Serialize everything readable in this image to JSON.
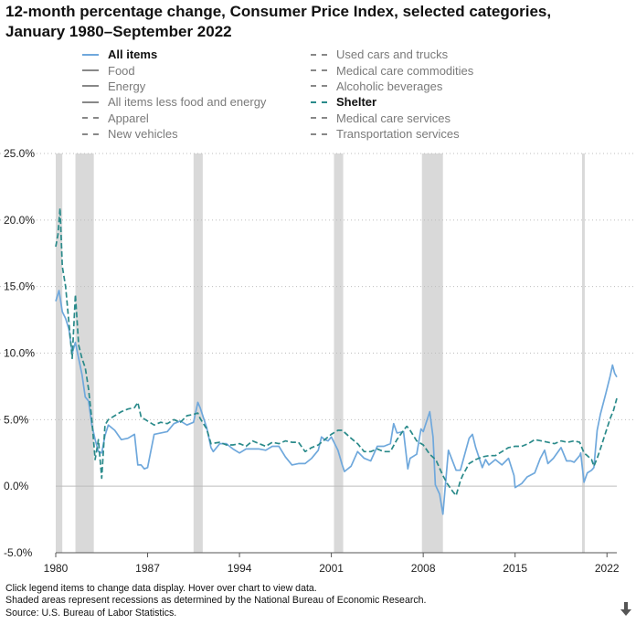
{
  "title_line1": "12-month percentage change, Consumer Price Index, selected categories,",
  "title_line2": "January 1980–September 2022",
  "legend": {
    "left": [
      {
        "label": "All items",
        "style": "solid",
        "color": "#6fa8dc",
        "active": true
      },
      {
        "label": "Food",
        "style": "solid",
        "color": "#888888",
        "active": false
      },
      {
        "label": "Energy",
        "style": "solid",
        "color": "#888888",
        "active": false
      },
      {
        "label": "All items less food and energy",
        "style": "solid",
        "color": "#888888",
        "active": false
      },
      {
        "label": "Apparel",
        "style": "dashed",
        "color": "#888888",
        "active": false
      },
      {
        "label": "New vehicles",
        "style": "dashed",
        "color": "#888888",
        "active": false
      }
    ],
    "right": [
      {
        "label": "Used cars and trucks",
        "style": "dashed",
        "color": "#888888",
        "active": false
      },
      {
        "label": "Medical care commodities",
        "style": "dashed",
        "color": "#888888",
        "active": false
      },
      {
        "label": "Alcoholic beverages",
        "style": "dashed",
        "color": "#888888",
        "active": false
      },
      {
        "label": "Shelter",
        "style": "dashed",
        "color": "#2a8a8a",
        "active": true
      },
      {
        "label": "Medical care services",
        "style": "dashed",
        "color": "#888888",
        "active": false
      },
      {
        "label": "Transportation services",
        "style": "dashed",
        "color": "#888888",
        "active": false
      }
    ]
  },
  "chart_data": {
    "type": "line",
    "title": "12-month percentage change, Consumer Price Index, selected categories, January 1980–September 2022",
    "xlim": [
      1980.0,
      2022.75
    ],
    "ylim": [
      -5,
      25
    ],
    "y_ticks": [
      -5,
      0,
      5,
      10,
      15,
      20,
      25
    ],
    "y_tick_labels": [
      "-5.0%",
      "0.0%",
      "5.0%",
      "10.0%",
      "15.0%",
      "20.0%",
      "25.0%"
    ],
    "x_ticks": [
      1980,
      1987,
      1994,
      2001,
      2008,
      2015,
      2022
    ],
    "x_tick_labels": [
      "1980",
      "1987",
      "1994",
      "2001",
      "2008",
      "2015",
      "2022"
    ],
    "grid": "horizontal dotted",
    "recessions": [
      [
        1980.0,
        1980.5
      ],
      [
        1981.5,
        1982.9
      ],
      [
        1990.5,
        1991.2
      ],
      [
        2001.2,
        2001.9
      ],
      [
        2007.9,
        2009.5
      ],
      [
        2020.1,
        2020.3
      ]
    ],
    "series": [
      {
        "name": "All items",
        "color": "#6fa8dc",
        "dash": false,
        "points": [
          [
            1980.0,
            13.9
          ],
          [
            1980.25,
            14.7
          ],
          [
            1980.5,
            13.1
          ],
          [
            1980.75,
            12.6
          ],
          [
            1981.0,
            11.8
          ],
          [
            1981.25,
            10.0
          ],
          [
            1981.5,
            10.8
          ],
          [
            1981.75,
            9.6
          ],
          [
            1982.0,
            8.4
          ],
          [
            1982.25,
            6.7
          ],
          [
            1982.5,
            6.4
          ],
          [
            1982.75,
            4.6
          ],
          [
            1983.0,
            3.5
          ],
          [
            1983.25,
            2.6
          ],
          [
            1983.5,
            2.5
          ],
          [
            1983.75,
            3.8
          ],
          [
            1984.0,
            4.6
          ],
          [
            1984.5,
            4.2
          ],
          [
            1985.0,
            3.5
          ],
          [
            1985.5,
            3.6
          ],
          [
            1986.0,
            3.9
          ],
          [
            1986.25,
            1.6
          ],
          [
            1986.5,
            1.6
          ],
          [
            1986.75,
            1.3
          ],
          [
            1987.0,
            1.4
          ],
          [
            1987.5,
            3.9
          ],
          [
            1988.0,
            4.0
          ],
          [
            1988.5,
            4.1
          ],
          [
            1989.0,
            4.7
          ],
          [
            1989.5,
            4.9
          ],
          [
            1990.0,
            4.6
          ],
          [
            1990.5,
            4.8
          ],
          [
            1990.83,
            6.3
          ],
          [
            1991.0,
            5.9
          ],
          [
            1991.5,
            4.4
          ],
          [
            1991.83,
            2.9
          ],
          [
            1992.0,
            2.6
          ],
          [
            1992.5,
            3.2
          ],
          [
            1993.0,
            3.2
          ],
          [
            1993.5,
            2.8
          ],
          [
            1994.0,
            2.5
          ],
          [
            1994.5,
            2.8
          ],
          [
            1995.0,
            2.8
          ],
          [
            1995.5,
            2.8
          ],
          [
            1996.0,
            2.7
          ],
          [
            1996.5,
            3.0
          ],
          [
            1997.0,
            3.0
          ],
          [
            1997.5,
            2.2
          ],
          [
            1998.0,
            1.6
          ],
          [
            1998.5,
            1.7
          ],
          [
            1999.0,
            1.7
          ],
          [
            1999.5,
            2.1
          ],
          [
            2000.0,
            2.7
          ],
          [
            2000.25,
            3.7
          ],
          [
            2000.5,
            3.5
          ],
          [
            2000.75,
            3.4
          ],
          [
            2001.0,
            3.7
          ],
          [
            2001.5,
            2.7
          ],
          [
            2001.83,
            1.6
          ],
          [
            2002.0,
            1.1
          ],
          [
            2002.5,
            1.5
          ],
          [
            2003.0,
            2.6
          ],
          [
            2003.5,
            2.1
          ],
          [
            2004.0,
            1.9
          ],
          [
            2004.5,
            3.0
          ],
          [
            2005.0,
            3.0
          ],
          [
            2005.5,
            3.2
          ],
          [
            2005.75,
            4.7
          ],
          [
            2006.0,
            4.0
          ],
          [
            2006.5,
            4.1
          ],
          [
            2006.83,
            1.3
          ],
          [
            2007.0,
            2.1
          ],
          [
            2007.5,
            2.4
          ],
          [
            2007.83,
            4.3
          ],
          [
            2008.0,
            4.1
          ],
          [
            2008.5,
            5.6
          ],
          [
            2008.75,
            3.7
          ],
          [
            2008.92,
            0.1
          ],
          [
            2009.25,
            -0.6
          ],
          [
            2009.5,
            -2.1
          ],
          [
            2009.92,
            2.7
          ],
          [
            2010.5,
            1.2
          ],
          [
            2010.83,
            1.2
          ],
          [
            2011.5,
            3.6
          ],
          [
            2011.75,
            3.9
          ],
          [
            2012.0,
            2.9
          ],
          [
            2012.5,
            1.4
          ],
          [
            2012.75,
            2.0
          ],
          [
            2013.0,
            1.6
          ],
          [
            2013.5,
            2.0
          ],
          [
            2014.0,
            1.6
          ],
          [
            2014.5,
            2.1
          ],
          [
            2014.92,
            0.8
          ],
          [
            2015.0,
            -0.1
          ],
          [
            2015.5,
            0.2
          ],
          [
            2015.92,
            0.7
          ],
          [
            2016.5,
            1.0
          ],
          [
            2016.92,
            2.1
          ],
          [
            2017.25,
            2.7
          ],
          [
            2017.5,
            1.7
          ],
          [
            2017.92,
            2.1
          ],
          [
            2018.5,
            2.9
          ],
          [
            2018.92,
            1.9
          ],
          [
            2019.25,
            1.9
          ],
          [
            2019.5,
            1.8
          ],
          [
            2019.92,
            2.3
          ],
          [
            2020.0,
            2.5
          ],
          [
            2020.25,
            0.3
          ],
          [
            2020.5,
            1.0
          ],
          [
            2020.83,
            1.2
          ],
          [
            2021.0,
            1.4
          ],
          [
            2021.25,
            4.2
          ],
          [
            2021.5,
            5.4
          ],
          [
            2021.92,
            7.0
          ],
          [
            2022.25,
            8.3
          ],
          [
            2022.42,
            9.1
          ],
          [
            2022.58,
            8.5
          ],
          [
            2022.75,
            8.2
          ]
        ]
      },
      {
        "name": "Shelter",
        "color": "#2a8a8a",
        "dash": true,
        "points": [
          [
            1980.0,
            18.0
          ],
          [
            1980.17,
            18.9
          ],
          [
            1980.33,
            20.9
          ],
          [
            1980.5,
            16.5
          ],
          [
            1980.75,
            15.0
          ],
          [
            1981.0,
            12.3
          ],
          [
            1981.25,
            9.6
          ],
          [
            1981.5,
            14.4
          ],
          [
            1981.75,
            10.6
          ],
          [
            1982.0,
            9.6
          ],
          [
            1982.25,
            8.9
          ],
          [
            1982.5,
            7.3
          ],
          [
            1982.75,
            5.0
          ],
          [
            1983.0,
            2.0
          ],
          [
            1983.25,
            3.5
          ],
          [
            1983.5,
            0.6
          ],
          [
            1983.75,
            4.6
          ],
          [
            1984.0,
            5.0
          ],
          [
            1984.5,
            5.3
          ],
          [
            1985.0,
            5.6
          ],
          [
            1985.5,
            5.8
          ],
          [
            1986.0,
            5.9
          ],
          [
            1986.25,
            6.3
          ],
          [
            1986.5,
            5.2
          ],
          [
            1987.0,
            4.9
          ],
          [
            1987.5,
            4.6
          ],
          [
            1988.0,
            4.8
          ],
          [
            1988.5,
            4.7
          ],
          [
            1989.0,
            5.0
          ],
          [
            1989.5,
            4.8
          ],
          [
            1990.0,
            5.3
          ],
          [
            1990.5,
            5.4
          ],
          [
            1990.83,
            5.5
          ],
          [
            1991.0,
            5.1
          ],
          [
            1991.5,
            4.3
          ],
          [
            1991.83,
            3.2
          ],
          [
            1992.5,
            3.3
          ],
          [
            1993.0,
            3.1
          ],
          [
            1993.5,
            3.1
          ],
          [
            1994.0,
            3.2
          ],
          [
            1994.5,
            3.0
          ],
          [
            1995.0,
            3.4
          ],
          [
            1995.5,
            3.2
          ],
          [
            1996.0,
            3.0
          ],
          [
            1996.5,
            3.3
          ],
          [
            1997.0,
            3.2
          ],
          [
            1997.5,
            3.4
          ],
          [
            1998.0,
            3.3
          ],
          [
            1998.5,
            3.3
          ],
          [
            1999.0,
            2.6
          ],
          [
            1999.5,
            2.9
          ],
          [
            2000.0,
            3.1
          ],
          [
            2000.5,
            3.5
          ],
          [
            2001.0,
            3.9
          ],
          [
            2001.5,
            4.2
          ],
          [
            2001.83,
            4.2
          ],
          [
            2002.5,
            3.6
          ],
          [
            2003.0,
            3.2
          ],
          [
            2003.5,
            2.6
          ],
          [
            2004.0,
            2.6
          ],
          [
            2004.5,
            2.8
          ],
          [
            2005.0,
            2.6
          ],
          [
            2005.5,
            2.6
          ],
          [
            2006.0,
            3.5
          ],
          [
            2006.5,
            4.2
          ],
          [
            2006.75,
            4.5
          ],
          [
            2007.0,
            4.2
          ],
          [
            2007.5,
            3.4
          ],
          [
            2008.0,
            3.1
          ],
          [
            2008.5,
            2.4
          ],
          [
            2008.83,
            2.1
          ],
          [
            2009.0,
            1.9
          ],
          [
            2009.5,
            0.8
          ],
          [
            2009.83,
            0.2
          ],
          [
            2010.25,
            -0.4
          ],
          [
            2010.5,
            -0.7
          ],
          [
            2010.83,
            0.4
          ],
          [
            2011.0,
            0.8
          ],
          [
            2011.5,
            1.7
          ],
          [
            2012.0,
            2.0
          ],
          [
            2012.5,
            2.2
          ],
          [
            2013.0,
            2.3
          ],
          [
            2013.5,
            2.3
          ],
          [
            2014.0,
            2.6
          ],
          [
            2014.5,
            2.9
          ],
          [
            2015.0,
            3.0
          ],
          [
            2015.5,
            3.0
          ],
          [
            2016.0,
            3.2
          ],
          [
            2016.5,
            3.5
          ],
          [
            2017.0,
            3.4
          ],
          [
            2017.5,
            3.3
          ],
          [
            2018.0,
            3.2
          ],
          [
            2018.5,
            3.4
          ],
          [
            2019.0,
            3.3
          ],
          [
            2019.5,
            3.4
          ],
          [
            2019.92,
            3.3
          ],
          [
            2020.25,
            2.5
          ],
          [
            2020.5,
            2.3
          ],
          [
            2020.83,
            2.0
          ],
          [
            2021.0,
            1.5
          ],
          [
            2021.25,
            2.1
          ],
          [
            2021.5,
            2.8
          ],
          [
            2021.92,
            4.1
          ],
          [
            2022.25,
            5.1
          ],
          [
            2022.5,
            5.7
          ],
          [
            2022.75,
            6.6
          ]
        ]
      }
    ]
  },
  "footnotes": {
    "line1": "Click legend items to change data display. Hover over chart to view data.",
    "line2": "Shaded areas represent recessions as determined by the National Bureau of Economic Research.",
    "line3": "Source: U.S. Bureau of Labor Statistics."
  },
  "icons": {
    "download": "download-arrow-icon"
  }
}
